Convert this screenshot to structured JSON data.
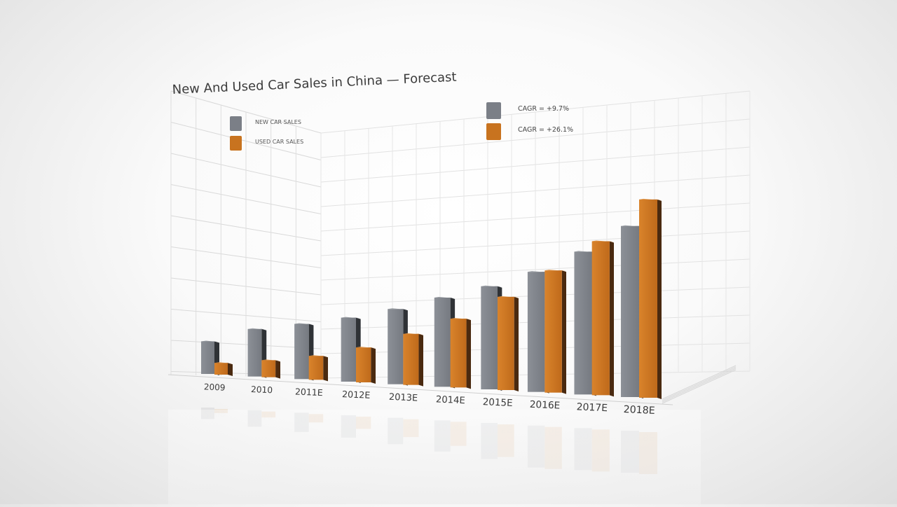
{
  "chart_data": {
    "type": "bar",
    "title": "New And Used Car Sales in China — Forecast",
    "categories": [
      "2009",
      "2010",
      "2011E",
      "2012E",
      "2013E",
      "2014E",
      "2015E",
      "2016E",
      "2017E",
      "2018E"
    ],
    "series": [
      {
        "name": "NEW CAR SALES",
        "color": "#7b7f87",
        "values": [
          13.3,
          17.6,
          18.7,
          20.0,
          21.8,
          24.1,
          26.1,
          28.6,
          32.1,
          36.4
        ]
      },
      {
        "name": "USED CAR SALES",
        "color": "#c8731f",
        "values": [
          4.8,
          6.3,
          8.1,
          10.9,
          14.8,
          18.6,
          23.6,
          29.1,
          34.6,
          42.2
        ]
      }
    ],
    "annotations": [
      {
        "label": "CAGR = +9.7%",
        "series": "NEW CAR SALES"
      },
      {
        "label": "CAGR = +26.1%",
        "series": "USED CAR SALES"
      }
    ],
    "legend_position": "top-left",
    "grid": true,
    "ylim": [
      0,
      45
    ]
  }
}
